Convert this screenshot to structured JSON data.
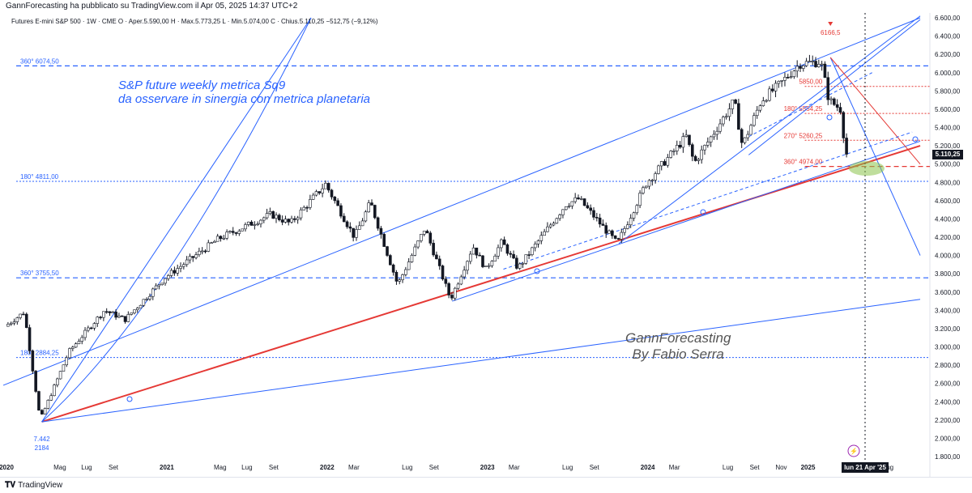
{
  "header": {
    "published": "GannForecasting ha pubblicato su TradingView.com il Apr 05, 2025 14:37 UTC+2",
    "legend": "Futures E-mini S&P 500 · 1W · CME   O · Aper.5.590,00   H · Max.5.773,25   L · Min.5.074,00   C · Chius.5.110,25   −512,75 (−9,12%)"
  },
  "footer": {
    "brand": "TradingView"
  },
  "annotations": {
    "title_line1": "S&P future weekly metrica Sq9",
    "title_line2": "da osservare in sinergia con metrica planetaria",
    "author_line1": "GannForecasting",
    "author_line2": "By Fabio Serra"
  },
  "badges": {
    "price": "5.110,25",
    "date": "lun 21 Apr '25"
  },
  "colors": {
    "blue": "#2962ff",
    "red": "#e53935",
    "up": "#ffffff",
    "down": "#131722",
    "green_highlight": "#8bc34a"
  },
  "chart_data": {
    "type": "candlestick",
    "symbol": "Futures E-mini S&P 500",
    "timeframe": "1W",
    "y_ticks": [
      1800,
      2000,
      2200,
      2400,
      2600,
      2800,
      3000,
      3200,
      3400,
      3600,
      3800,
      4000,
      4200,
      4400,
      4600,
      4800,
      5000,
      5200,
      5400,
      5600,
      5800,
      6000,
      6200,
      6400,
      6600
    ],
    "y_tick_labels": [
      "1.800,00",
      "2.000,00",
      "2.200,00",
      "2.400,00",
      "2.600,00",
      "2.800,00",
      "3.000,00",
      "3.200,00",
      "3.400,00",
      "3.600,00",
      "3.800,00",
      "4.000,00",
      "4.200,00",
      "4.400,00",
      "4.600,00",
      "4.800,00",
      "5.000,00",
      "5.200,00",
      "5.400,00",
      "5.600,00",
      "5.800,00",
      "6.000,00",
      "6.200,00",
      "6.400,00",
      "6.600,00"
    ],
    "x_ticks": [
      {
        "t": 2020.0,
        "label": "2020"
      },
      {
        "t": 2020.333,
        "label": "Mag"
      },
      {
        "t": 2020.5,
        "label": "Lug"
      },
      {
        "t": 2020.667,
        "label": "Set"
      },
      {
        "t": 2021.0,
        "label": "2021"
      },
      {
        "t": 2021.333,
        "label": "Mag"
      },
      {
        "t": 2021.5,
        "label": "Lug"
      },
      {
        "t": 2021.667,
        "label": "Set"
      },
      {
        "t": 2022.0,
        "label": "2022"
      },
      {
        "t": 2022.167,
        "label": "Mar"
      },
      {
        "t": 2022.5,
        "label": "Lug"
      },
      {
        "t": 2022.667,
        "label": "Set"
      },
      {
        "t": 2023.0,
        "label": "2023"
      },
      {
        "t": 2023.167,
        "label": "Mar"
      },
      {
        "t": 2023.5,
        "label": "Lug"
      },
      {
        "t": 2023.667,
        "label": "Set"
      },
      {
        "t": 2024.0,
        "label": "2024"
      },
      {
        "t": 2024.167,
        "label": "Mar"
      },
      {
        "t": 2024.5,
        "label": "Lug"
      },
      {
        "t": 2024.667,
        "label": "Set"
      },
      {
        "t": 2024.833,
        "label": "Nov"
      },
      {
        "t": 2025.0,
        "label": "2025"
      },
      {
        "t": 2025.5,
        "label": "Lug"
      }
    ],
    "anchors": [
      {
        "t": 2020.0,
        "v": 3225
      },
      {
        "t": 2020.12,
        "v": 3380
      },
      {
        "t": 2020.22,
        "v": 2200
      },
      {
        "t": 2020.4,
        "v": 2950
      },
      {
        "t": 2020.62,
        "v": 3400
      },
      {
        "t": 2020.75,
        "v": 3300
      },
      {
        "t": 2021.0,
        "v": 3760
      },
      {
        "t": 2021.33,
        "v": 4180
      },
      {
        "t": 2021.66,
        "v": 4450
      },
      {
        "t": 2021.78,
        "v": 4350
      },
      {
        "t": 2022.0,
        "v": 4780
      },
      {
        "t": 2022.18,
        "v": 4200
      },
      {
        "t": 2022.28,
        "v": 4580
      },
      {
        "t": 2022.45,
        "v": 3680
      },
      {
        "t": 2022.62,
        "v": 4300
      },
      {
        "t": 2022.78,
        "v": 3520
      },
      {
        "t": 2022.92,
        "v": 4100
      },
      {
        "t": 2023.0,
        "v": 3850
      },
      {
        "t": 2023.1,
        "v": 4150
      },
      {
        "t": 2023.2,
        "v": 3860
      },
      {
        "t": 2023.5,
        "v": 4560
      },
      {
        "t": 2023.58,
        "v": 4620
      },
      {
        "t": 2023.82,
        "v": 4130
      },
      {
        "t": 2024.0,
        "v": 4790
      },
      {
        "t": 2024.25,
        "v": 5300
      },
      {
        "t": 2024.3,
        "v": 5010
      },
      {
        "t": 2024.55,
        "v": 5690
      },
      {
        "t": 2024.6,
        "v": 5200
      },
      {
        "t": 2024.72,
        "v": 5700
      },
      {
        "t": 2024.82,
        "v": 5850
      },
      {
        "t": 2024.96,
        "v": 6100
      },
      {
        "t": 2025.09,
        "v": 6120
      },
      {
        "t": 2025.14,
        "v": 5700
      },
      {
        "t": 2025.22,
        "v": 5590
      },
      {
        "t": 2025.24,
        "v": 5110
      }
    ],
    "levels": [
      {
        "value": 6074.5,
        "label": "360° 6074,50",
        "style": "dashed",
        "color": "#2962ff"
      },
      {
        "value": 4811.0,
        "label": "180° 4811,00",
        "style": "dotted",
        "color": "#2962ff"
      },
      {
        "value": 3755.5,
        "label": "360° 3755,50",
        "style": "dashed",
        "color": "#2962ff"
      },
      {
        "value": 2884.25,
        "label": "180° 2884,25",
        "style": "dotted",
        "color": "#2962ff"
      },
      {
        "value": 5850.0,
        "label": "5850,00",
        "style": "dotted",
        "color": "#e53935"
      },
      {
        "value": 5554.25,
        "label": "180° 5554,25",
        "style": "dotted",
        "color": "#e53935"
      },
      {
        "value": 5260.25,
        "label": "270° 5260,25",
        "style": "dotted",
        "color": "#e53935"
      },
      {
        "value": 4974.0,
        "label": "360° 4974,00",
        "style": "dashed",
        "color": "#e53935"
      }
    ],
    "top_marker": {
      "value": 6166.5,
      "label": "6166,5"
    },
    "low_marker": {
      "line1": "7.442",
      "line2": "2184"
    },
    "gann_lines": [
      {
        "from": [
          2020.22,
          2180
        ],
        "to": [
          2025.7,
          5200
        ],
        "color": "#e53935",
        "width": 2
      },
      {
        "from": [
          2020.22,
          2180
        ],
        "to": [
          2025.7,
          3520
        ],
        "color": "#2962ff",
        "width": 1
      },
      {
        "from": [
          2020.22,
          2180
        ],
        "to": [
          2021.9,
          6600
        ],
        "color": "#2962ff",
        "width": 1
      },
      {
        "from": [
          2019.98,
          2580
        ],
        "to": [
          2025.7,
          6600
        ],
        "color": "#2962ff",
        "width": 1
      },
      {
        "from": [
          2022.78,
          3500
        ],
        "to": [
          2025.7,
          5250
        ],
        "color": "#2962ff",
        "width": 1
      },
      {
        "from": [
          2023.82,
          4130
        ],
        "to": [
          2025.7,
          6620
        ],
        "color": "#2962ff",
        "width": 1
      },
      {
        "from": [
          2024.63,
          5100
        ],
        "to": [
          2025.7,
          6580
        ],
        "color": "#2962ff",
        "width": 1
      },
      {
        "from": [
          2025.14,
          6166
        ],
        "to": [
          2025.7,
          4000
        ],
        "color": "#2962ff",
        "width": 1
      },
      {
        "from": [
          2025.14,
          6166
        ],
        "to": [
          2025.7,
          5000
        ],
        "color": "#e53935",
        "width": 1
      },
      {
        "from": [
          2023.1,
          3850
        ],
        "to": [
          2025.65,
          5350
        ],
        "color": "#2962ff",
        "width": 1,
        "dash": true
      },
      {
        "from": [
          2024.63,
          5300
        ],
        "to": [
          2025.4,
          6000
        ],
        "color": "#2962ff",
        "width": 1,
        "dash": true
      }
    ],
    "current_price": 5110.25,
    "current_date": "lun 21 Apr '25",
    "ylim": [
      1700,
      6700
    ]
  }
}
